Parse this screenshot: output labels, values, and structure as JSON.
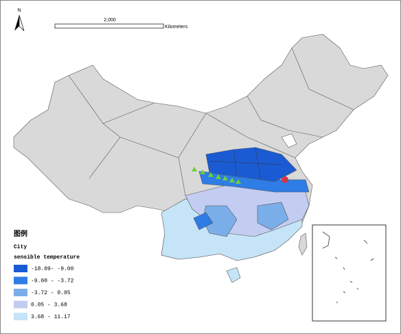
{
  "north_arrow": {
    "label": "N"
  },
  "scale_bar": {
    "label": "2,000",
    "unit": "Kilometers"
  },
  "legend": {
    "title": "图例",
    "layer": "City",
    "field": "sensible temperature",
    "classes": [
      {
        "label": "-18.09- -9.00",
        "color": "#1a5bd4"
      },
      {
        "label": "-9.00 - -3.72",
        "color": "#2e7de6"
      },
      {
        "label": "-3.72 - 0.05",
        "color": "#7aaee8"
      },
      {
        "label": "0.05 - 3.68",
        "color": "#c3cdf2"
      },
      {
        "label": "3.68 - 11.17",
        "color": "#c5e4f7"
      }
    ]
  }
}
